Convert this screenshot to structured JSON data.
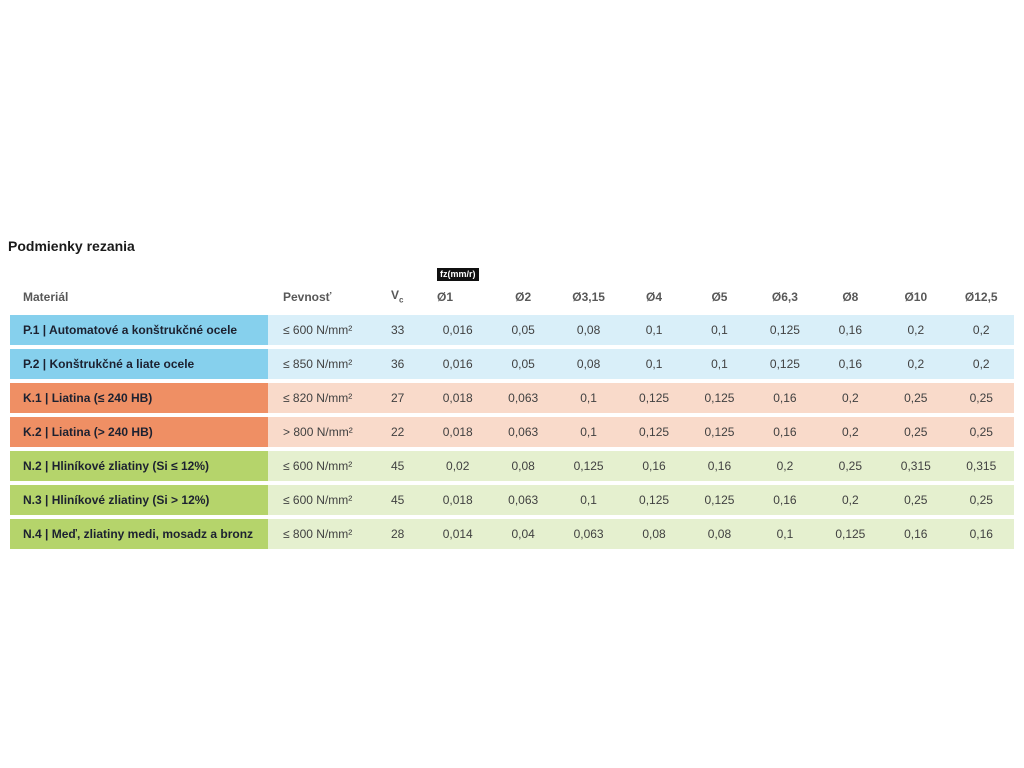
{
  "title": "Podmienky rezania",
  "colors": {
    "P": {
      "label_bg": "#86D0ED",
      "data_bg": "#D9EFF9"
    },
    "K": {
      "label_bg": "#EF8F64",
      "data_bg": "#F9DACA"
    },
    "N": {
      "label_bg": "#B5D46B",
      "data_bg": "#E5F0CF"
    }
  },
  "table": {
    "headers": {
      "material": "Materiál",
      "strength": "Pevnosť",
      "vc_base": "V",
      "vc_sub": "c",
      "fz_badge": "fz(mm/r)",
      "diameters": [
        "Ø1",
        "Ø2",
        "Ø3,15",
        "Ø4",
        "Ø5",
        "Ø6,3",
        "Ø8",
        "Ø10",
        "Ø12,5"
      ]
    },
    "rows": [
      {
        "group": "P",
        "material": "P.1 | Automatové a konštrukčné ocele",
        "strength": "≤ 600 N/mm²",
        "vc": "33",
        "fz": [
          "0,016",
          "0,05",
          "0,08",
          "0,1",
          "0,1",
          "0,125",
          "0,16",
          "0,2",
          "0,2"
        ]
      },
      {
        "group": "P",
        "material": "P.2 | Konštrukčné a liate ocele",
        "strength": "≤ 850 N/mm²",
        "vc": "36",
        "fz": [
          "0,016",
          "0,05",
          "0,08",
          "0,1",
          "0,1",
          "0,125",
          "0,16",
          "0,2",
          "0,2"
        ]
      },
      {
        "group": "K",
        "material": "K.1 | Liatina (≤ 240 HB)",
        "strength": "≤ 820 N/mm²",
        "vc": "27",
        "fz": [
          "0,018",
          "0,063",
          "0,1",
          "0,125",
          "0,125",
          "0,16",
          "0,2",
          "0,25",
          "0,25"
        ]
      },
      {
        "group": "K",
        "material": "K.2 | Liatina (> 240 HB)",
        "strength": "> 800 N/mm²",
        "vc": "22",
        "fz": [
          "0,018",
          "0,063",
          "0,1",
          "0,125",
          "0,125",
          "0,16",
          "0,2",
          "0,25",
          "0,25"
        ]
      },
      {
        "group": "N",
        "material": "N.2 | Hliníkové zliatiny (Si ≤ 12%)",
        "strength": "≤ 600 N/mm²",
        "vc": "45",
        "fz": [
          "0,02",
          "0,08",
          "0,125",
          "0,16",
          "0,16",
          "0,2",
          "0,25",
          "0,315",
          "0,315"
        ]
      },
      {
        "group": "N",
        "material": "N.3 | Hliníkové zliatiny (Si > 12%)",
        "strength": "≤ 600 N/mm²",
        "vc": "45",
        "fz": [
          "0,018",
          "0,063",
          "0,1",
          "0,125",
          "0,125",
          "0,16",
          "0,2",
          "0,25",
          "0,25"
        ]
      },
      {
        "group": "N",
        "material": "N.4 | Meď, zliatiny medi, mosadz a bronz",
        "strength": "≤ 800 N/mm²",
        "vc": "28",
        "fz": [
          "0,014",
          "0,04",
          "0,063",
          "0,08",
          "0,08",
          "0,1",
          "0,125",
          "0,16",
          "0,16"
        ]
      }
    ]
  }
}
